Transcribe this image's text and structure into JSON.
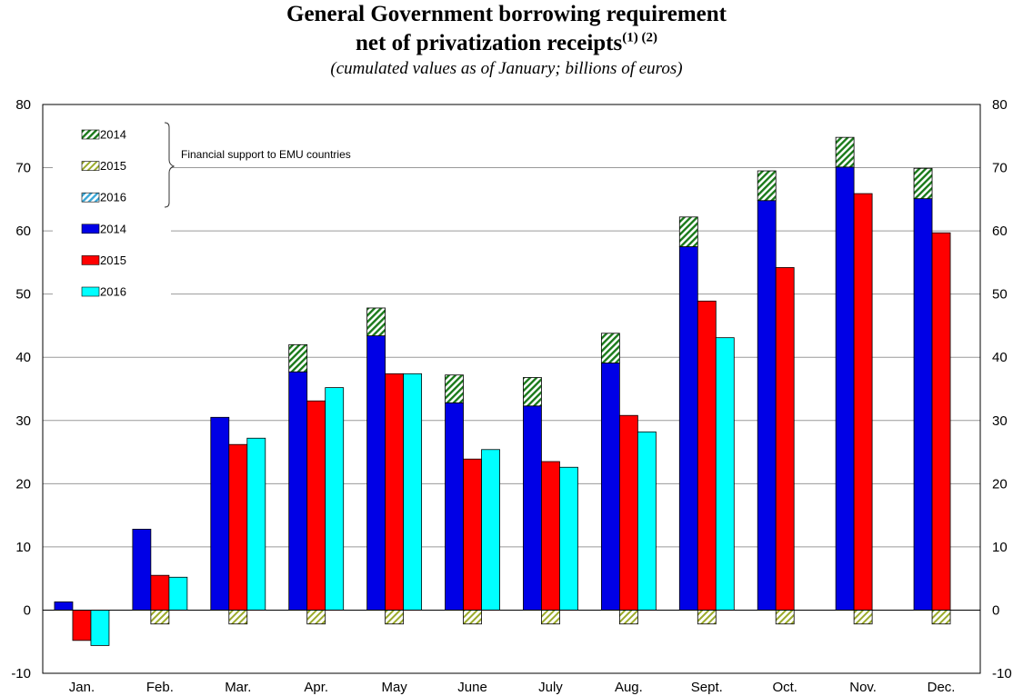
{
  "title": {
    "line1": "General Government borrowing requirement",
    "line2": "net of privatization receipts",
    "line2_sup": "(1) (2)",
    "subtitle": "(cumulated values as of January; billions of euros)"
  },
  "annotation": "Financial support to EMU countries",
  "chart_data": {
    "type": "bar",
    "stacked_segments": true,
    "categories": [
      "Jan.",
      "Feb.",
      "Mar.",
      "Apr.",
      "May",
      "June",
      "July",
      "Aug.",
      "Sept.",
      "Oct.",
      "Nov.",
      "Dec."
    ],
    "ylim": [
      -10,
      80
    ],
    "yticks": [
      -10,
      0,
      10,
      20,
      30,
      40,
      50,
      60,
      70,
      80
    ],
    "grid": true,
    "secondary_y_axis": true,
    "legend_position": "top-left",
    "series": [
      {
        "name": "2014",
        "color": "#0000e6",
        "fill": "solid",
        "values": [
          1.3,
          12.8,
          30.5,
          37.7,
          43.4,
          32.8,
          32.3,
          39.1,
          57.5,
          64.8,
          70.1,
          65.1
        ]
      },
      {
        "name": "2015",
        "color": "#ff0000",
        "fill": "solid",
        "values": [
          -4.8,
          5.5,
          26.2,
          33.1,
          37.4,
          23.9,
          23.5,
          30.8,
          48.9,
          54.2,
          65.9,
          59.7
        ]
      },
      {
        "name": "2016",
        "color": "#00ffff",
        "fill": "solid",
        "values": [
          -5.6,
          5.2,
          27.2,
          35.2,
          37.4,
          25.4,
          22.6,
          28.2,
          43.1,
          null,
          null,
          null
        ]
      },
      {
        "name": "2014",
        "color": "#1a7a1a",
        "fill": "hatched",
        "stack_on": "2014",
        "values": [
          null,
          null,
          null,
          4.3,
          4.4,
          4.4,
          4.5,
          4.7,
          4.7,
          4.7,
          4.7,
          4.8
        ]
      },
      {
        "name": "2015",
        "color": "#9aaa2a",
        "fill": "hatched",
        "stack_on": "2015",
        "values": [
          null,
          -2.2,
          -2.2,
          -2.2,
          -2.2,
          -2.2,
          -2.2,
          -2.2,
          -2.2,
          -2.2,
          -2.2,
          -2.2
        ]
      },
      {
        "name": "2016",
        "color": "#3aa8d8",
        "fill": "hatched",
        "stack_on": "2016",
        "values": [
          null,
          null,
          null,
          null,
          null,
          null,
          null,
          null,
          null,
          null,
          null,
          null
        ]
      }
    ]
  }
}
